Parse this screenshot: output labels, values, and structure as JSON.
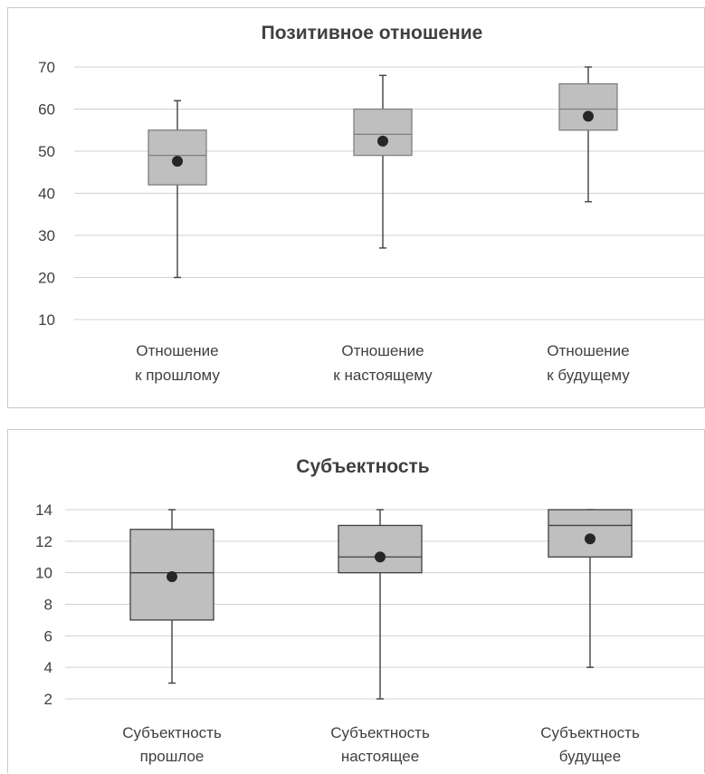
{
  "chart_data": [
    {
      "type": "box",
      "title": "Позитивное отношение",
      "ylim": [
        10,
        70
      ],
      "yticks": [
        10,
        20,
        30,
        40,
        50,
        60,
        70
      ],
      "grid": true,
      "categories": [
        [
          "Отношение",
          "к прошлому"
        ],
        [
          "Отношение",
          "к настоящему"
        ],
        [
          "Отношение",
          "к будущему"
        ]
      ],
      "boxes": [
        {
          "min": 20,
          "q1": 42,
          "median": 49,
          "q3": 55,
          "max": 62,
          "mean": 47.6
        },
        {
          "min": 27,
          "q1": 49,
          "median": 54,
          "q3": 60,
          "max": 68,
          "mean": 52.4
        },
        {
          "min": 38,
          "q1": 55,
          "median": 60,
          "q3": 66,
          "max": 70,
          "mean": 58.3
        }
      ],
      "colors": {
        "box_fill": "#bfbfbf",
        "box_stroke": "#7f7f7f",
        "mean": "#262626"
      }
    },
    {
      "type": "box",
      "title": "Субъектность",
      "ylim": [
        2,
        14
      ],
      "yticks": [
        2,
        4,
        6,
        8,
        10,
        12,
        14
      ],
      "grid": true,
      "categories": [
        [
          "Субъектность",
          "прошлое"
        ],
        [
          "Субъектность",
          "настоящее"
        ],
        [
          "Субъектность",
          "будущее"
        ]
      ],
      "boxes": [
        {
          "min": 3,
          "q1": 7,
          "median": 10,
          "q3": 12.75,
          "max": 14,
          "mean": 9.75
        },
        {
          "min": 2,
          "q1": 10,
          "median": 11,
          "q3": 13,
          "max": 14,
          "mean": 11
        },
        {
          "min": 4,
          "q1": 11,
          "median": 13,
          "q3": 14,
          "max": 14,
          "mean": 12.15
        }
      ],
      "colors": {
        "box_fill": "#bfbfbf",
        "box_stroke": "#404040",
        "mean": "#404040"
      }
    }
  ]
}
